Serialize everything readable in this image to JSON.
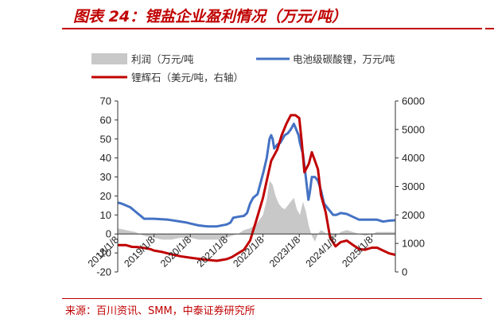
{
  "header": {
    "title": "图表 24：锂盐企业盈利情况（万元/吨）"
  },
  "footer": {
    "source": "来源：百川资讯、SMM，中泰证券研究所"
  },
  "chart_data": {
    "type": "line",
    "title": "图表 24：锂盐企业盈利情况（万元/吨）",
    "x_type": "date",
    "xlim": [
      "2018-01-08",
      "2025-09-01"
    ],
    "x_tick_labels": [
      "2018/1/8",
      "2019/1/8",
      "2020/1/8",
      "2021/1/8",
      "2022/1/8",
      "2023/1/8",
      "2024/1/8",
      "2025/1/8"
    ],
    "x_ticks": [
      "2018-01-08",
      "2019-01-08",
      "2020-01-08",
      "2021-01-08",
      "2022-01-08",
      "2023-01-08",
      "2024-01-08",
      "2025-01-08"
    ],
    "left_axis": {
      "ylim": [
        -20,
        70
      ],
      "ticks": [
        -20,
        -10,
        0,
        10,
        20,
        30,
        40,
        50,
        60,
        70
      ]
    },
    "right_axis": {
      "ylim": [
        0,
        6000
      ],
      "ticks": [
        0,
        1000,
        2000,
        3000,
        4000,
        5000,
        6000
      ]
    },
    "legend": {
      "placement": "top"
    },
    "series": [
      {
        "name": "利润（万元/吨",
        "kind": "area",
        "axis": "left",
        "color": "#c8c8c8",
        "points": [
          [
            "2018-01-08",
            3
          ],
          [
            "2018-04-01",
            2
          ],
          [
            "2018-07-01",
            1
          ],
          [
            "2018-10-01",
            -1
          ],
          [
            "2019-01-08",
            -2
          ],
          [
            "2019-04-01",
            -3
          ],
          [
            "2019-07-01",
            -3
          ],
          [
            "2019-10-01",
            -2
          ],
          [
            "2020-01-08",
            -2
          ],
          [
            "2020-04-01",
            -3
          ],
          [
            "2020-07-01",
            -3
          ],
          [
            "2020-10-01",
            -3
          ],
          [
            "2021-01-08",
            -2
          ],
          [
            "2021-03-01",
            -1
          ],
          [
            "2021-05-01",
            0
          ],
          [
            "2021-07-01",
            2
          ],
          [
            "2021-09-01",
            3
          ],
          [
            "2021-11-01",
            5
          ],
          [
            "2022-01-08",
            10
          ],
          [
            "2022-02-15",
            18
          ],
          [
            "2022-03-15",
            28
          ],
          [
            "2022-04-15",
            26
          ],
          [
            "2022-05-15",
            20
          ],
          [
            "2022-06-15",
            16
          ],
          [
            "2022-07-15",
            14
          ],
          [
            "2022-08-15",
            13
          ],
          [
            "2022-09-15",
            15
          ],
          [
            "2022-10-15",
            17
          ],
          [
            "2022-11-15",
            19
          ],
          [
            "2022-12-15",
            13
          ],
          [
            "2023-01-15",
            10
          ],
          [
            "2023-02-15",
            17
          ],
          [
            "2023-03-15",
            12
          ],
          [
            "2023-04-15",
            4
          ],
          [
            "2023-05-15",
            -1
          ],
          [
            "2023-06-15",
            -4
          ],
          [
            "2023-07-15",
            0
          ],
          [
            "2023-08-15",
            2
          ],
          [
            "2023-09-15",
            1
          ],
          [
            "2023-10-15",
            0
          ],
          [
            "2023-11-15",
            -2
          ],
          [
            "2023-12-15",
            -3
          ],
          [
            "2024-01-15",
            -1
          ],
          [
            "2024-03-01",
            1
          ],
          [
            "2024-05-01",
            2
          ],
          [
            "2024-07-01",
            1
          ],
          [
            "2024-09-01",
            0
          ],
          [
            "2024-11-01",
            -1
          ],
          [
            "2025-01-08",
            0
          ],
          [
            "2025-03-01",
            1
          ],
          [
            "2025-05-01",
            1
          ],
          [
            "2025-07-01",
            1
          ],
          [
            "2025-09-01",
            1
          ]
        ]
      },
      {
        "name": "电池级碳酸锂，万元/吨",
        "kind": "line",
        "axis": "left",
        "color": "#4472c4",
        "points": [
          [
            "2018-01-08",
            16.5
          ],
          [
            "2018-02-15",
            16
          ],
          [
            "2018-04-01",
            15
          ],
          [
            "2018-05-15",
            14
          ],
          [
            "2018-07-01",
            12
          ],
          [
            "2018-08-15",
            10
          ],
          [
            "2018-10-01",
            8
          ],
          [
            "2018-12-01",
            8
          ],
          [
            "2019-01-08",
            8
          ],
          [
            "2019-06-01",
            7.5
          ],
          [
            "2019-12-01",
            6
          ],
          [
            "2020-01-08",
            5.5
          ],
          [
            "2020-04-01",
            4.5
          ],
          [
            "2020-07-01",
            4
          ],
          [
            "2020-10-01",
            4
          ],
          [
            "2021-01-08",
            5
          ],
          [
            "2021-02-15",
            6
          ],
          [
            "2021-03-15",
            8.5
          ],
          [
            "2021-05-01",
            9
          ],
          [
            "2021-07-01",
            9.5
          ],
          [
            "2021-08-01",
            11
          ],
          [
            "2021-09-01",
            16
          ],
          [
            "2021-10-01",
            19
          ],
          [
            "2021-11-15",
            21
          ],
          [
            "2021-12-15",
            27
          ],
          [
            "2022-01-15",
            33
          ],
          [
            "2022-02-15",
            40
          ],
          [
            "2022-03-15",
            50
          ],
          [
            "2022-04-01",
            52
          ],
          [
            "2022-04-15",
            50
          ],
          [
            "2022-05-01",
            45
          ],
          [
            "2022-06-01",
            47
          ],
          [
            "2022-07-01",
            48
          ],
          [
            "2022-08-15",
            52
          ],
          [
            "2022-09-15",
            53
          ],
          [
            "2022-10-15",
            55
          ],
          [
            "2022-11-15",
            58
          ],
          [
            "2022-12-01",
            56
          ],
          [
            "2023-01-01",
            52
          ],
          [
            "2023-01-15",
            48
          ],
          [
            "2023-02-15",
            42
          ],
          [
            "2023-03-15",
            30
          ],
          [
            "2023-04-10",
            18
          ],
          [
            "2023-04-25",
            22
          ],
          [
            "2023-05-15",
            30
          ],
          [
            "2023-06-15",
            30
          ],
          [
            "2023-07-15",
            28
          ],
          [
            "2023-08-15",
            23
          ],
          [
            "2023-09-15",
            16
          ],
          [
            "2023-10-15",
            14
          ],
          [
            "2023-11-15",
            12
          ],
          [
            "2023-12-15",
            10
          ],
          [
            "2024-01-15",
            10
          ],
          [
            "2024-03-01",
            11
          ],
          [
            "2024-05-01",
            10.5
          ],
          [
            "2024-07-01",
            9
          ],
          [
            "2024-09-01",
            7.5
          ],
          [
            "2024-11-01",
            7.5
          ],
          [
            "2025-01-08",
            7.5
          ],
          [
            "2025-03-01",
            7.5
          ],
          [
            "2025-05-01",
            6.5
          ],
          [
            "2025-07-01",
            7
          ],
          [
            "2025-09-01",
            7.2
          ]
        ]
      },
      {
        "name": "锂辉石（美元/吨，右轴）",
        "kind": "line",
        "axis": "right",
        "color": "#c00000",
        "points": [
          [
            "2018-01-08",
            940
          ],
          [
            "2018-04-01",
            940
          ],
          [
            "2018-06-01",
            880
          ],
          [
            "2018-08-01",
            870
          ],
          [
            "2018-10-01",
            840
          ],
          [
            "2018-12-01",
            800
          ],
          [
            "2019-01-08",
            750
          ],
          [
            "2019-04-01",
            700
          ],
          [
            "2019-07-01",
            620
          ],
          [
            "2019-10-01",
            550
          ],
          [
            "2020-01-08",
            500
          ],
          [
            "2020-04-01",
            460
          ],
          [
            "2020-07-01",
            420
          ],
          [
            "2020-10-01",
            390
          ],
          [
            "2021-01-08",
            450
          ],
          [
            "2021-03-01",
            520
          ],
          [
            "2021-05-01",
            650
          ],
          [
            "2021-07-01",
            780
          ],
          [
            "2021-09-01",
            1100
          ],
          [
            "2021-11-01",
            1800
          ],
          [
            "2022-01-08",
            2600
          ],
          [
            "2022-02-15",
            3200
          ],
          [
            "2022-04-01",
            3900
          ],
          [
            "2022-06-01",
            4300
          ],
          [
            "2022-07-15",
            4800
          ],
          [
            "2022-09-01",
            5200
          ],
          [
            "2022-10-15",
            5500
          ],
          [
            "2022-12-01",
            5500
          ],
          [
            "2023-01-08",
            5400
          ],
          [
            "2023-02-01",
            4600
          ],
          [
            "2023-03-01",
            3500
          ],
          [
            "2023-04-15",
            3800
          ],
          [
            "2023-05-15",
            4200
          ],
          [
            "2023-06-15",
            3900
          ],
          [
            "2023-07-15",
            3600
          ],
          [
            "2023-08-15",
            2700
          ],
          [
            "2023-10-01",
            2100
          ],
          [
            "2023-11-15",
            1200
          ],
          [
            "2024-01-08",
            900
          ],
          [
            "2024-03-01",
            1050
          ],
          [
            "2024-05-01",
            1100
          ],
          [
            "2024-07-01",
            950
          ],
          [
            "2024-09-01",
            800
          ],
          [
            "2024-11-01",
            780
          ],
          [
            "2025-01-08",
            850
          ],
          [
            "2025-03-01",
            850
          ],
          [
            "2025-05-01",
            750
          ],
          [
            "2025-07-01",
            650
          ],
          [
            "2025-09-01",
            600
          ]
        ]
      }
    ]
  }
}
